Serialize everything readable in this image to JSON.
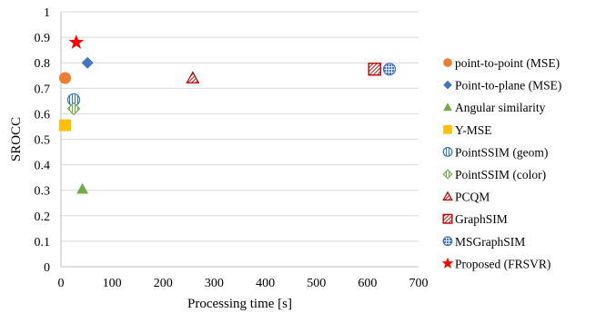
{
  "chart_data": {
    "type": "scatter",
    "title": "",
    "xlabel": "Processing time [s]",
    "ylabel": "SROCC",
    "xlim": [
      0,
      700
    ],
    "ylim": [
      0,
      1
    ],
    "x_ticks": [
      "0",
      "100",
      "200",
      "300",
      "400",
      "500",
      "600",
      "700"
    ],
    "y_ticks": [
      "0",
      "0.1",
      "0.2",
      "0.3",
      "0.4",
      "0.5",
      "0.6",
      "0.7",
      "0.8",
      "0.9",
      "1"
    ],
    "grid": "horizontal",
    "legend_position": "right",
    "series": [
      {
        "name": "point-to-point (MSE)",
        "marker": "circle",
        "color": "#ED7D31",
        "points": [
          {
            "x": 8,
            "y": 0.74
          }
        ]
      },
      {
        "name": "Point-to-plane (MSE)",
        "marker": "diamond",
        "color": "#4472C4",
        "points": [
          {
            "x": 52,
            "y": 0.8
          }
        ]
      },
      {
        "name": "Angular similarity",
        "marker": "triangle",
        "color": "#70AD47",
        "points": [
          {
            "x": 42,
            "y": 0.305
          }
        ]
      },
      {
        "name": "Y-MSE",
        "marker": "square",
        "color": "#FFC000",
        "points": [
          {
            "x": 8,
            "y": 0.555
          }
        ]
      },
      {
        "name": "PointSSIM (geom)",
        "marker": "circle-vlines",
        "color": "#2E75B6",
        "points": [
          {
            "x": 25,
            "y": 0.655
          }
        ]
      },
      {
        "name": "PointSSIM (color)",
        "marker": "diamond-vlines",
        "color": "#70AD47",
        "points": [
          {
            "x": 25,
            "y": 0.62
          }
        ]
      },
      {
        "name": "PCQM",
        "marker": "triangle-hatch",
        "color": "#C00000",
        "points": [
          {
            "x": 258,
            "y": 0.74
          }
        ]
      },
      {
        "name": "GraphSIM",
        "marker": "square-hatch",
        "color": "#C00000",
        "points": [
          {
            "x": 614,
            "y": 0.775
          }
        ]
      },
      {
        "name": "MSGraphSIM",
        "marker": "circle-grid",
        "color": "#4472C4",
        "points": [
          {
            "x": 643,
            "y": 0.775
          }
        ]
      },
      {
        "name": "Proposed (FRSVR)",
        "marker": "star",
        "color": "#FF0000",
        "points": [
          {
            "x": 30,
            "y": 0.88
          }
        ]
      }
    ]
  }
}
